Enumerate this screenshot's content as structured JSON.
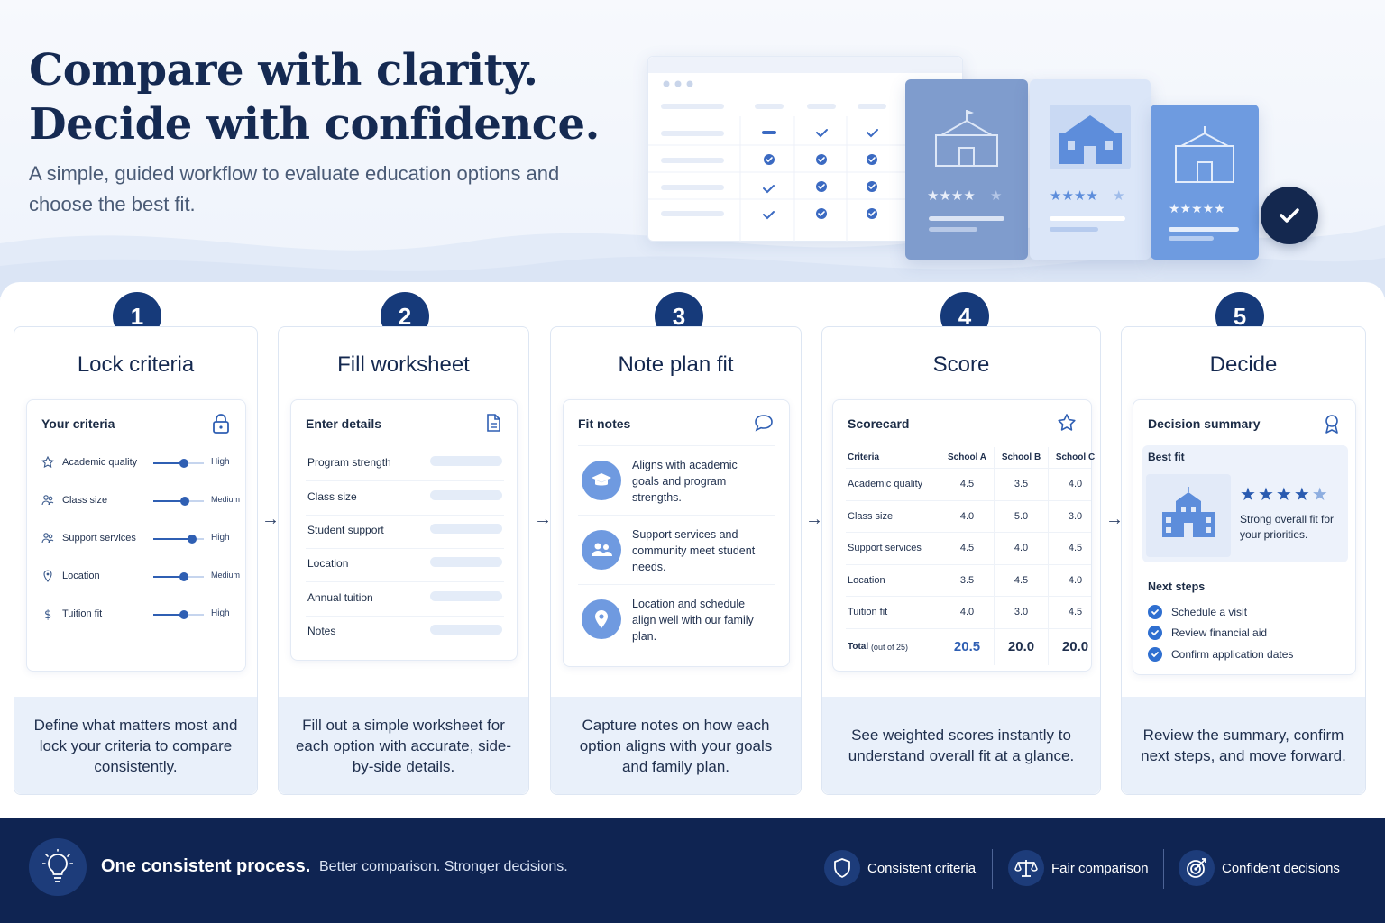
{
  "hero": {
    "title_line1": "Compare with clarity.",
    "title_line2": "Decide with confidence.",
    "subtitle": "A simple, guided workflow to evaluate education options and choose the best fit."
  },
  "colors": {
    "navy": "#14284f",
    "accent": "#2f5fb3",
    "footer_bg": "#0f2452"
  },
  "steps": [
    {
      "number": "1",
      "title": "Lock criteria",
      "description": "Define what matters most and lock your criteria to compare consistently.",
      "card_title": "Your criteria",
      "card_icon": "lock-icon",
      "criteria": [
        {
          "label": "Academic quality",
          "icon": "medal-icon",
          "level": "High",
          "value": 0.6
        },
        {
          "label": "Class size",
          "icon": "people-icon",
          "level": "Medium",
          "value": 0.62
        },
        {
          "label": "Support services",
          "icon": "people-icon",
          "level": "High",
          "value": 0.76
        },
        {
          "label": "Location",
          "icon": "pin-icon",
          "level": "Medium",
          "value": 0.6
        },
        {
          "label": "Tuition fit",
          "icon": "dollar-icon",
          "level": "High",
          "value": 0.6
        }
      ]
    },
    {
      "number": "2",
      "title": "Fill worksheet",
      "description": "Fill out a simple worksheet for each option with accurate, side-by-side details.",
      "card_title": "Enter details",
      "card_icon": "document-icon",
      "fields": [
        "Program strength",
        "Class size",
        "Student support",
        "Location",
        "Annual tuition",
        "Notes"
      ]
    },
    {
      "number": "3",
      "title": "Note plan fit",
      "description": "Capture notes on how each option aligns with your goals and family plan.",
      "card_title": "Fit notes",
      "card_icon": "chat-bubble-icon",
      "notes": [
        {
          "icon": "graduation-cap-icon",
          "text": "Aligns with academic goals and program strengths."
        },
        {
          "icon": "people-icon",
          "text": "Support services and community meet student needs."
        },
        {
          "icon": "pin-icon",
          "text": "Location and schedule align well with our family plan."
        }
      ]
    },
    {
      "number": "4",
      "title": "Score",
      "description": "See weighted scores instantly to understand overall fit at a glance.",
      "card_title": "Scorecard",
      "card_icon": "star-icon",
      "columns": [
        "Criteria",
        "School A",
        "School B",
        "School C"
      ],
      "rows": [
        [
          "Academic quality",
          "4.5",
          "3.5",
          "4.0"
        ],
        [
          "Class size",
          "4.0",
          "5.0",
          "3.0"
        ],
        [
          "Support services",
          "4.5",
          "4.0",
          "4.5"
        ],
        [
          "Location",
          "3.5",
          "4.5",
          "4.0"
        ],
        [
          "Tuition fit",
          "4.0",
          "3.0",
          "4.5"
        ]
      ],
      "total_label": "Total",
      "total_suffix": "(out of 25)",
      "totals": [
        "20.5",
        "20.0",
        "20.0"
      ]
    },
    {
      "number": "5",
      "title": "Decide",
      "description": "Review the summary, confirm next steps, and move forward.",
      "card_title": "Decision summary",
      "card_icon": "award-ribbon-icon",
      "best_fit_label": "Best fit",
      "best_fit_rating": 4.5,
      "best_fit_text": "Strong overall fit for your priorities.",
      "next_steps_label": "Next steps",
      "next_steps": [
        "Schedule a visit",
        "Review financial aid",
        "Confirm application dates"
      ]
    }
  ],
  "footer": {
    "strong": "One consistent process.",
    "light": "Better comparison. Stronger decisions.",
    "items": [
      {
        "icon": "shield-icon",
        "label": "Consistent criteria"
      },
      {
        "icon": "scale-icon",
        "label": "Fair comparison"
      },
      {
        "icon": "target-icon",
        "label": "Confident decisions"
      }
    ]
  }
}
